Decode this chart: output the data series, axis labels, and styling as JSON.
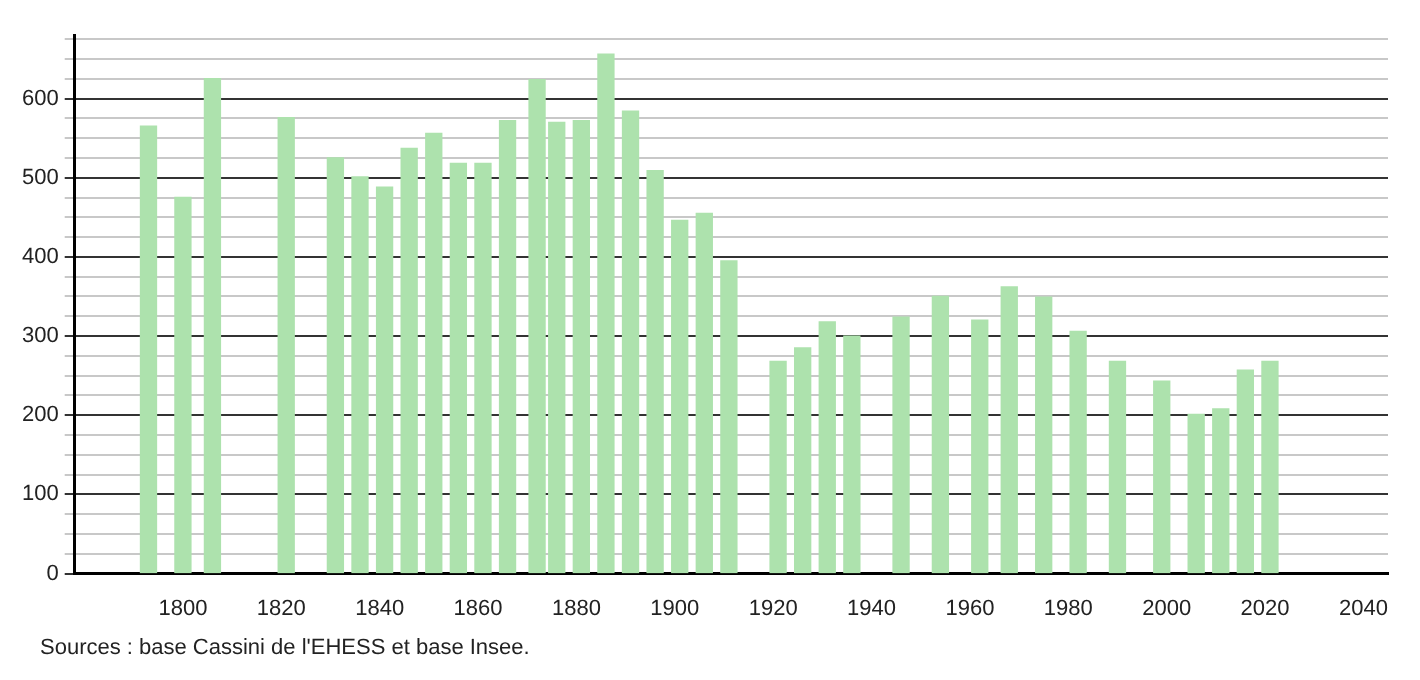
{
  "chart_data": {
    "type": "bar",
    "color": "#ade2ad",
    "x": [
      1793,
      1800,
      1806,
      1821,
      1831,
      1836,
      1841,
      1846,
      1851,
      1856,
      1861,
      1866,
      1872,
      1876,
      1881,
      1886,
      1891,
      1896,
      1901,
      1906,
      1911,
      1921,
      1926,
      1931,
      1936,
      1946,
      1954,
      1962,
      1968,
      1975,
      1982,
      1990,
      1999,
      2006,
      2011,
      2016,
      2021
    ],
    "values": [
      565,
      475,
      625,
      576,
      525,
      501,
      488,
      537,
      556,
      518,
      518,
      572,
      624,
      570,
      572,
      656,
      584,
      509,
      446,
      455,
      395,
      268,
      285,
      318,
      300,
      324,
      350,
      320,
      362,
      349,
      306,
      268,
      243,
      201,
      208,
      257,
      268
    ],
    "xlim": [
      1778,
      2045
    ],
    "xticks": [
      1800,
      1820,
      1840,
      1860,
      1880,
      1900,
      1920,
      1940,
      1960,
      1980,
      2000,
      2020,
      2040
    ],
    "ylim": [
      0,
      680
    ],
    "yticks": [
      0,
      {
        "value": 25,
        "label": null
      },
      {
        "value": 50,
        "label": null
      },
      {
        "value": 75,
        "label": null
      },
      100,
      {
        "value": 125,
        "label": null
      },
      {
        "value": 150,
        "label": null
      },
      {
        "value": 175,
        "label": null
      },
      200,
      {
        "value": 225,
        "label": null
      },
      {
        "value": 250,
        "label": null
      },
      {
        "value": 275,
        "label": null
      },
      300,
      {
        "value": 325,
        "label": null
      },
      {
        "value": 350,
        "label": null
      },
      {
        "value": 375,
        "label": null
      },
      400,
      {
        "value": 425,
        "label": null
      },
      {
        "value": 450,
        "label": null
      },
      {
        "value": 475,
        "label": null
      },
      500,
      {
        "value": 525,
        "label": null
      },
      {
        "value": 550,
        "label": null
      },
      {
        "value": 575,
        "label": null
      },
      600,
      {
        "value": 625,
        "label": null
      },
      {
        "value": 650,
        "label": null
      },
      {
        "value": 675,
        "label": null
      }
    ],
    "grid": "y",
    "annotations": [
      "Sources : base Cassini de l'EHESS et base Insee."
    ]
  }
}
